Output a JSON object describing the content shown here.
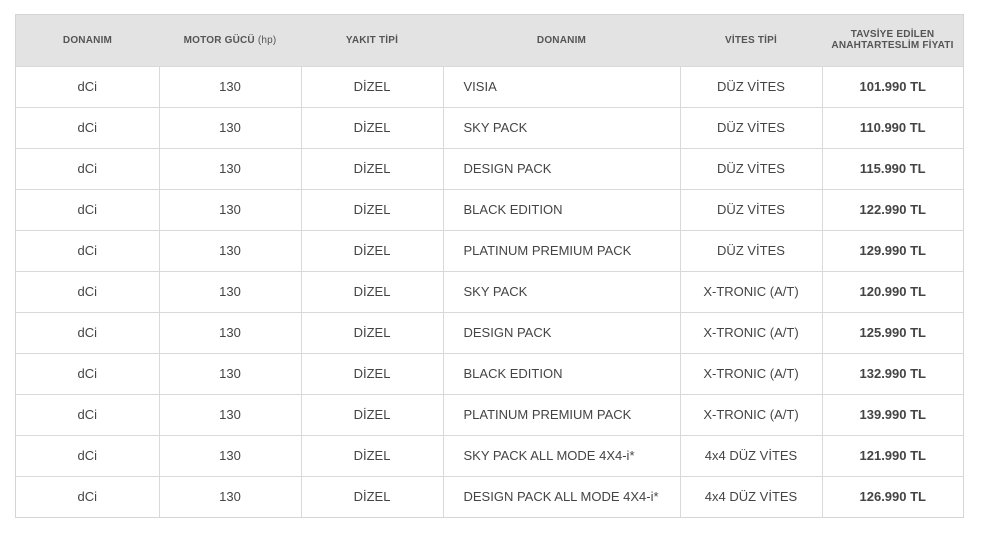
{
  "table": {
    "headers": {
      "donanim": "DONANIM",
      "motor": "MOTOR GÜCÜ",
      "motor_unit": "(hp)",
      "yakit": "YAKIT TİPİ",
      "donanim2": "DONANIM",
      "vites": "VİTES TİPİ",
      "fiyat_line1": "TAVSİYE EDİLEN",
      "fiyat_line2": "ANAHTARTESLİM FİYATI"
    },
    "rows": [
      {
        "engine": "dCi",
        "power": "130",
        "fuel": "DİZEL",
        "trim": "VISIA",
        "gearbox": "DÜZ VİTES",
        "price": "101.990 TL"
      },
      {
        "engine": "dCi",
        "power": "130",
        "fuel": "DİZEL",
        "trim": "SKY PACK",
        "gearbox": "DÜZ VİTES",
        "price": "110.990 TL"
      },
      {
        "engine": "dCi",
        "power": "130",
        "fuel": "DİZEL",
        "trim": "DESIGN PACK",
        "gearbox": "DÜZ VİTES",
        "price": "115.990 TL"
      },
      {
        "engine": "dCi",
        "power": "130",
        "fuel": "DİZEL",
        "trim": "BLACK EDITION",
        "gearbox": "DÜZ VİTES",
        "price": "122.990 TL"
      },
      {
        "engine": "dCi",
        "power": "130",
        "fuel": "DİZEL",
        "trim": "PLATINUM PREMIUM PACK",
        "gearbox": "DÜZ VİTES",
        "price": "129.990 TL"
      },
      {
        "engine": "dCi",
        "power": "130",
        "fuel": "DİZEL",
        "trim": "SKY PACK",
        "gearbox": "X-TRONIC (A/T)",
        "price": "120.990 TL"
      },
      {
        "engine": "dCi",
        "power": "130",
        "fuel": "DİZEL",
        "trim": "DESIGN PACK",
        "gearbox": "X-TRONIC (A/T)",
        "price": "125.990 TL"
      },
      {
        "engine": "dCi",
        "power": "130",
        "fuel": "DİZEL",
        "trim": "BLACK EDITION",
        "gearbox": "X-TRONIC (A/T)",
        "price": "132.990 TL"
      },
      {
        "engine": "dCi",
        "power": "130",
        "fuel": "DİZEL",
        "trim": "PLATINUM PREMIUM PACK",
        "gearbox": "X-TRONIC (A/T)",
        "price": "139.990 TL"
      },
      {
        "engine": "dCi",
        "power": "130",
        "fuel": "DİZEL",
        "trim": "SKY PACK ALL MODE 4X4-i*",
        "gearbox": "4x4 DÜZ VİTES",
        "price": "121.990 TL"
      },
      {
        "engine": "dCi",
        "power": "130",
        "fuel": "DİZEL",
        "trim": "DESIGN PACK ALL MODE 4X4-i*",
        "gearbox": "4x4 DÜZ VİTES",
        "price": "126.990 TL"
      }
    ]
  }
}
